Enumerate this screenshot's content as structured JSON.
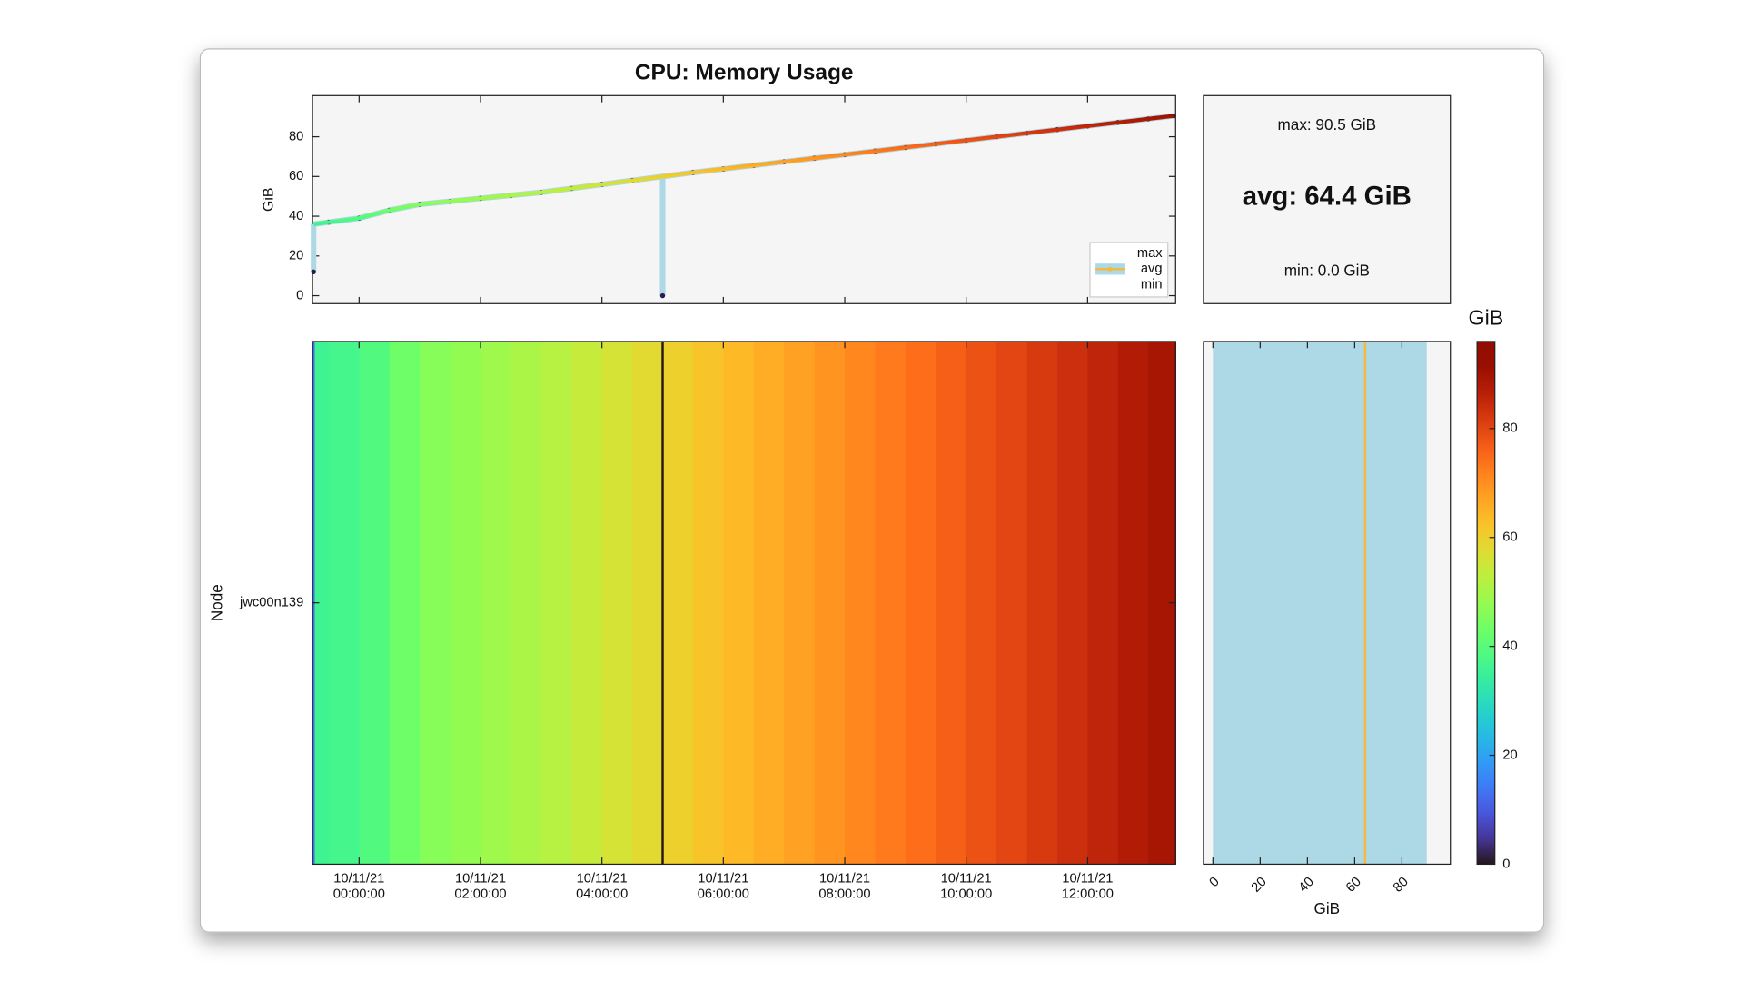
{
  "chart_data": [
    {
      "type": "line",
      "title": "CPU: Memory Usage",
      "ylabel": "GiB",
      "legend": "lower right",
      "x": [
        "2021-10-10T23:15",
        "2021-10-10T23:30",
        "2021-10-11T00:00",
        "2021-10-11T00:30",
        "2021-10-11T01:00",
        "2021-10-11T01:30",
        "2021-10-11T02:00",
        "2021-10-11T02:30",
        "2021-10-11T03:00",
        "2021-10-11T03:30",
        "2021-10-11T04:00",
        "2021-10-11T04:30",
        "2021-10-11T05:00",
        "2021-10-11T05:30",
        "2021-10-11T06:00",
        "2021-10-11T06:30",
        "2021-10-11T07:00",
        "2021-10-11T07:30",
        "2021-10-11T08:00",
        "2021-10-11T08:30",
        "2021-10-11T09:00",
        "2021-10-11T09:30",
        "2021-10-11T10:00",
        "2021-10-11T10:30",
        "2021-10-11T11:00",
        "2021-10-11T11:30",
        "2021-10-11T12:00",
        "2021-10-11T12:30",
        "2021-10-11T13:00",
        "2021-10-11T13:25"
      ],
      "series": [
        {
          "name": "max",
          "color": "#add8e6",
          "values": [
            36,
            37,
            39,
            43,
            46,
            47.5,
            49,
            50.5,
            52,
            54,
            56,
            58,
            60,
            62,
            63.8,
            65.6,
            67.4,
            69.2,
            71,
            72.8,
            74.6,
            76.4,
            78.2,
            80,
            81.8,
            83.6,
            85.4,
            87.2,
            89,
            90.5
          ]
        },
        {
          "name": "avg",
          "color": "#f5b93b",
          "values": [
            36,
            37,
            39,
            43,
            46,
            47.5,
            49,
            50.5,
            52,
            54,
            56,
            58,
            60,
            62,
            63.8,
            65.6,
            67.4,
            69.2,
            71,
            72.8,
            74.6,
            76.4,
            78.2,
            80,
            81.8,
            83.6,
            85.4,
            87.2,
            89,
            90.5
          ]
        },
        {
          "name": "min",
          "color": "#2b1a4e",
          "values": [
            12,
            37,
            39,
            43,
            46,
            47.5,
            49,
            50.5,
            52,
            54,
            56,
            58,
            0,
            62,
            63.8,
            65.6,
            67.4,
            69.2,
            71,
            72.8,
            74.6,
            76.4,
            78.2,
            80,
            81.8,
            83.6,
            85.4,
            87.2,
            89,
            90.5
          ]
        }
      ],
      "xlim": [
        "2021-10-10T23:14",
        "2021-10-11T13:27"
      ],
      "ylim": [
        -4,
        100.7
      ],
      "yticks": [
        0,
        20,
        40,
        60,
        80
      ]
    },
    {
      "type": "box",
      "values": [
        90.5,
        64.4,
        0.0
      ],
      "value_labels": [
        "max: 90.5 GiB",
        "avg: 64.4 GiB",
        "min: 0.0 GiB"
      ],
      "xlabel": "GiB",
      "xlim": [
        -4,
        100.5
      ],
      "xticks": [
        0,
        20,
        40,
        60,
        80
      ],
      "color": "#add8e6",
      "avg_color": "#f5b93b"
    },
    {
      "type": "heatmap",
      "categories": [
        "jwc00n139"
      ],
      "ylabel": "Node",
      "colormap": "turbo",
      "xticks": [
        {
          "value": "2021-10-11T00:00",
          "label": "10/11/21 00:00:00"
        },
        {
          "value": "2021-10-11T02:00",
          "label": "10/11/21 02:00:00"
        },
        {
          "value": "2021-10-11T04:00",
          "label": "10/11/21 04:00:00"
        },
        {
          "value": "2021-10-11T06:00",
          "label": "10/11/21 06:00:00"
        },
        {
          "value": "2021-10-11T08:00",
          "label": "10/11/21 08:00:00"
        },
        {
          "value": "2021-10-11T10:00",
          "label": "10/11/21 10:00:00"
        },
        {
          "value": "2021-10-11T12:00",
          "label": "10/11/21 12:00:00"
        }
      ],
      "colorbar_label": "GiB",
      "clim": [
        0,
        96
      ],
      "cticks": [
        0,
        20,
        40,
        60,
        80
      ]
    }
  ]
}
